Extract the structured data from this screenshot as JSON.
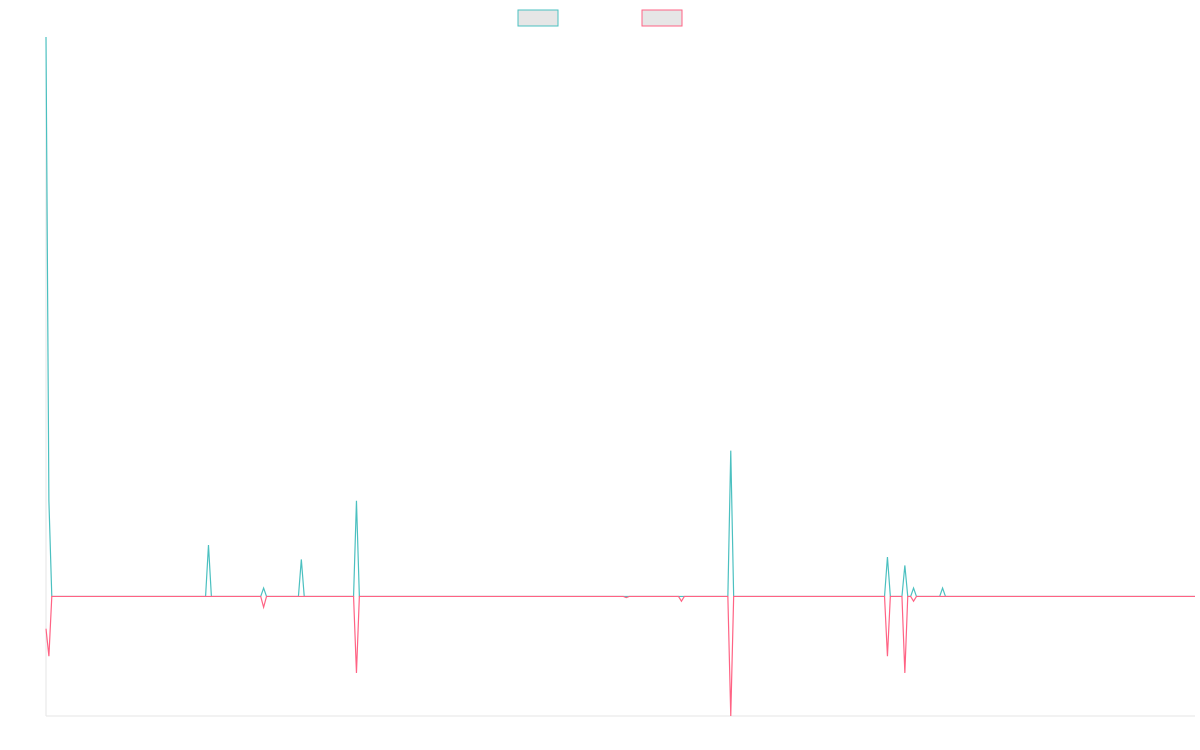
{
  "chart_data": {
    "type": "line",
    "title": "",
    "xlabel": "",
    "ylabel": "",
    "x_count": 397,
    "ylim": [
      -1,
      4.68
    ],
    "grid": false,
    "legend_position": "top-center",
    "series": [
      {
        "name": "",
        "color": "#4bc0c0",
        "points": [
          [
            0,
            4.68
          ],
          [
            1,
            0.8
          ],
          [
            2,
            0.0
          ],
          [
            3,
            0.0
          ],
          [
            55,
            0.0
          ],
          [
            56,
            0.43
          ],
          [
            57,
            0.0
          ],
          [
            74,
            0.0
          ],
          [
            75,
            0.07
          ],
          [
            76,
            0.0
          ],
          [
            87,
            0.0
          ],
          [
            88,
            0.31
          ],
          [
            89,
            0.0
          ],
          [
            106,
            0.0
          ],
          [
            107,
            0.8
          ],
          [
            108,
            0.0
          ],
          [
            235,
            0.0
          ],
          [
            236,
            1.22
          ],
          [
            237,
            0.0
          ],
          [
            289,
            0.0
          ],
          [
            290,
            0.33
          ],
          [
            291,
            0.0
          ],
          [
            295,
            0.0
          ],
          [
            296,
            0.26
          ],
          [
            297,
            0.0
          ],
          [
            298,
            0.0
          ],
          [
            299,
            0.07
          ],
          [
            300,
            0.0
          ],
          [
            308,
            0.0
          ],
          [
            309,
            0.07
          ],
          [
            310,
            0.0
          ],
          [
            396,
            0.0
          ]
        ]
      },
      {
        "name": "",
        "color": "#ff6384",
        "points": [
          [
            0,
            -0.27
          ],
          [
            1,
            -0.5
          ],
          [
            2,
            0.0
          ],
          [
            3,
            0.0
          ],
          [
            74,
            0.0
          ],
          [
            75,
            -0.09
          ],
          [
            76,
            0.0
          ],
          [
            106,
            0.0
          ],
          [
            107,
            -0.64
          ],
          [
            108,
            0.0
          ],
          [
            199,
            0.0
          ],
          [
            200,
            -0.01
          ],
          [
            201,
            0.0
          ],
          [
            218,
            0.0
          ],
          [
            219,
            -0.04
          ],
          [
            220,
            0.0
          ],
          [
            235,
            0.0
          ],
          [
            236,
            -1.0
          ],
          [
            237,
            0.0
          ],
          [
            289,
            0.0
          ],
          [
            290,
            -0.5
          ],
          [
            291,
            0.0
          ],
          [
            295,
            0.0
          ],
          [
            296,
            -0.64
          ],
          [
            297,
            0.0
          ],
          [
            298,
            0.0
          ],
          [
            299,
            -0.04
          ],
          [
            300,
            0.0
          ],
          [
            396,
            0.0
          ]
        ]
      }
    ]
  },
  "legend": [
    {
      "label": "",
      "color": "#4bc0c0",
      "fill": "#e6e6e6"
    },
    {
      "label": "",
      "color": "#ff6384",
      "fill": "#e6e6e6"
    }
  ],
  "axis_color": "#e5e5e5"
}
